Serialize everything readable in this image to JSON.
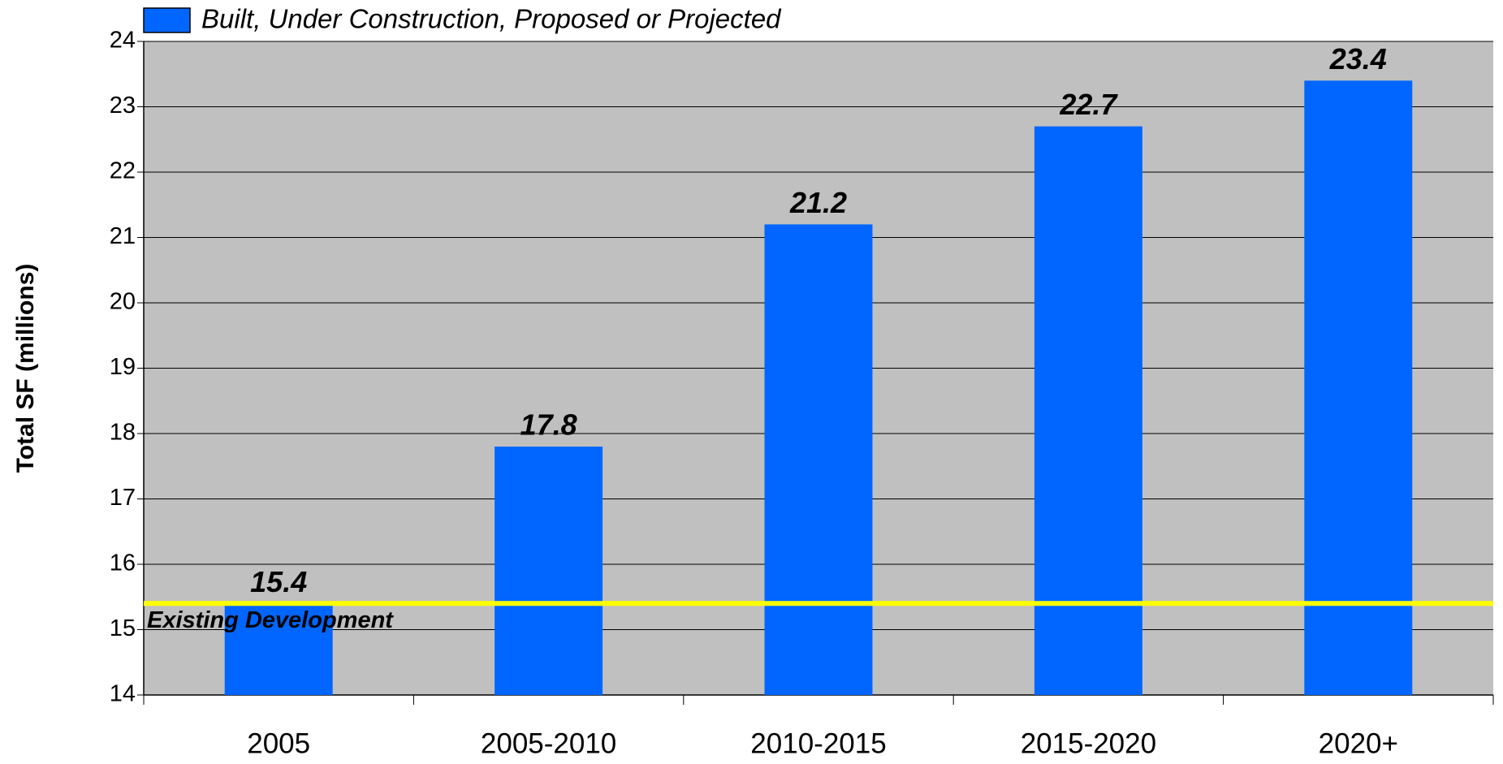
{
  "chart_data": {
    "type": "bar",
    "categories": [
      "2005",
      "2005-2010",
      "2010-2015",
      "2015-2020",
      "2020+"
    ],
    "series": [
      {
        "name": "Built, Under Construction, Proposed or Projected",
        "color": "#0066ff",
        "values": [
          15.4,
          17.8,
          21.2,
          22.7,
          23.4
        ]
      }
    ],
    "y_label": "Total SF (millions)",
    "ylim": [
      14,
      24
    ],
    "yticks": [
      14,
      15,
      16,
      17,
      18,
      19,
      20,
      21,
      22,
      23,
      24
    ],
    "grid": true,
    "reference_line": {
      "value": 15.4,
      "label": "Existing Development",
      "color": "#ffff00"
    }
  }
}
